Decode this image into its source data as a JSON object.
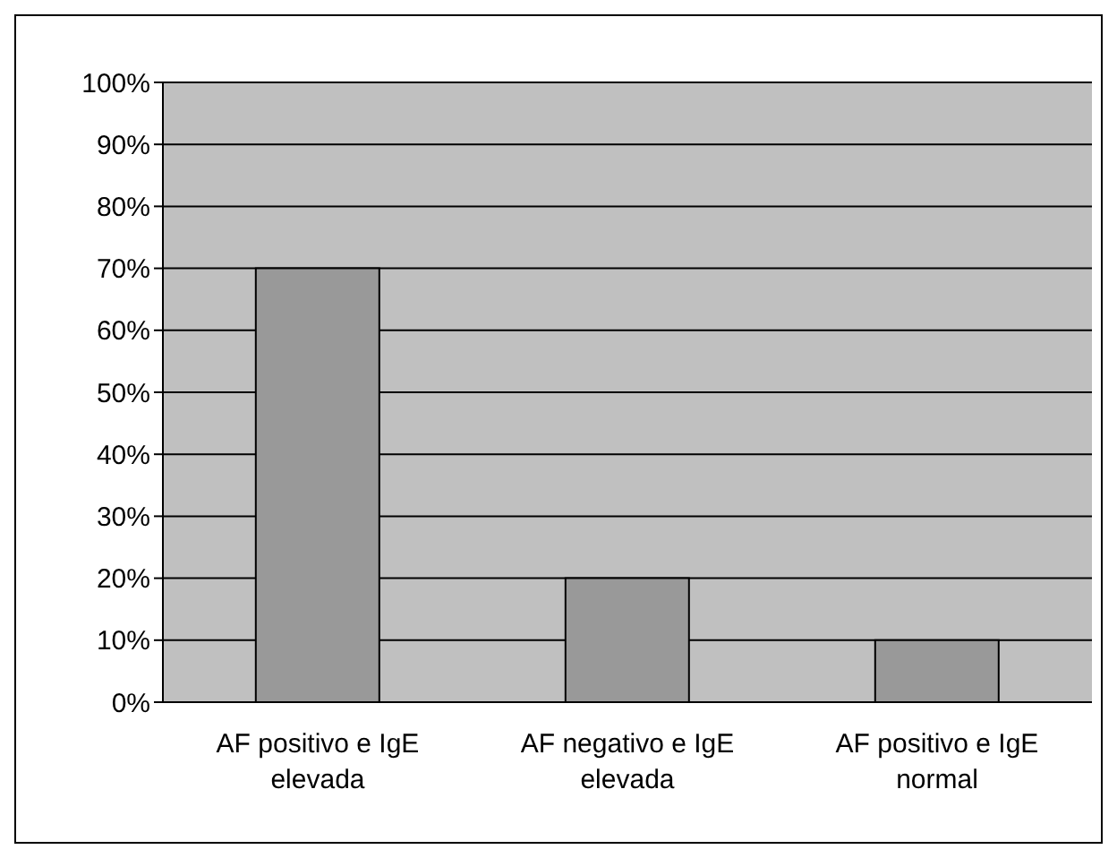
{
  "chart_data": {
    "type": "bar",
    "categories": [
      "AF positivo e IgE elevada",
      "AF negativo e IgE elevada",
      "AF positivo e IgE normal"
    ],
    "values": [
      70,
      20,
      10
    ],
    "color": "#999999",
    "ylim": [
      0,
      100
    ],
    "yticks": [
      {
        "value": 0,
        "label": "0%"
      },
      {
        "value": 10,
        "label": "10%"
      },
      {
        "value": 20,
        "label": "20%"
      },
      {
        "value": 30,
        "label": "30%"
      },
      {
        "value": 40,
        "label": "40%"
      },
      {
        "value": 50,
        "label": "50%"
      },
      {
        "value": 60,
        "label": "60%"
      },
      {
        "value": 70,
        "label": "70%"
      },
      {
        "value": 80,
        "label": "80%"
      },
      {
        "value": 90,
        "label": "90%"
      },
      {
        "value": 100,
        "label": "100%"
      }
    ],
    "grid": "y",
    "legend": false
  }
}
